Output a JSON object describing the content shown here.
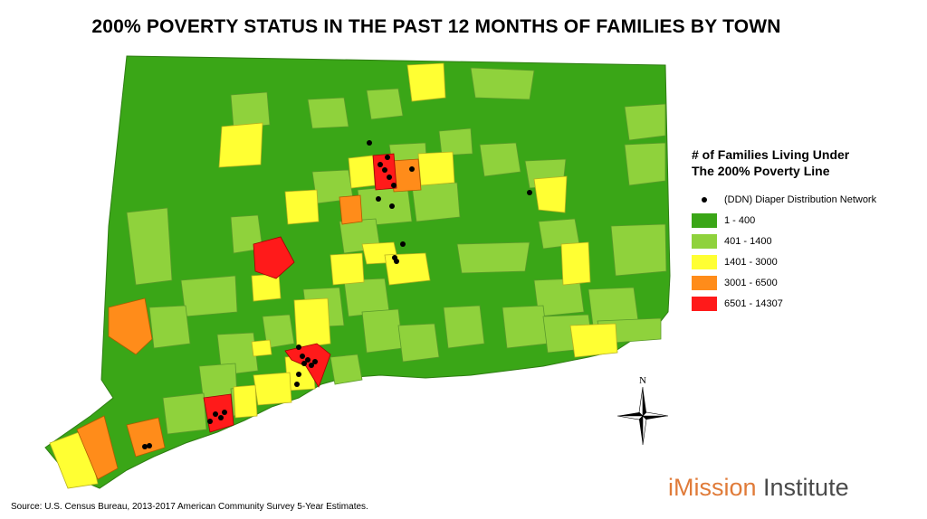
{
  "title": "200% POVERTY STATUS IN THE PAST 12 MONTHS OF FAMILIES BY TOWN",
  "legend": {
    "title_line1": "# of Families Living Under",
    "title_line2": "The 200% Poverty Line",
    "marker_label": "(DDN) Diaper Distribution Network",
    "classes": [
      {
        "label": "1 - 400",
        "color": "#3aa617"
      },
      {
        "label": "401 - 1400",
        "color": "#8fd23c"
      },
      {
        "label": "1401 - 3000",
        "color": "#ffff33"
      },
      {
        "label": "3001 - 6500",
        "color": "#ff8c1a"
      },
      {
        "label": "6501 - 14307",
        "color": "#ff1a1a"
      }
    ]
  },
  "north_label": "N",
  "source": "Source: U.S. Census Bureau, 2013-2017 American Community Survey 5-Year Estimates.",
  "brand": {
    "part1": "iMission",
    "part2": " Institute"
  }
}
